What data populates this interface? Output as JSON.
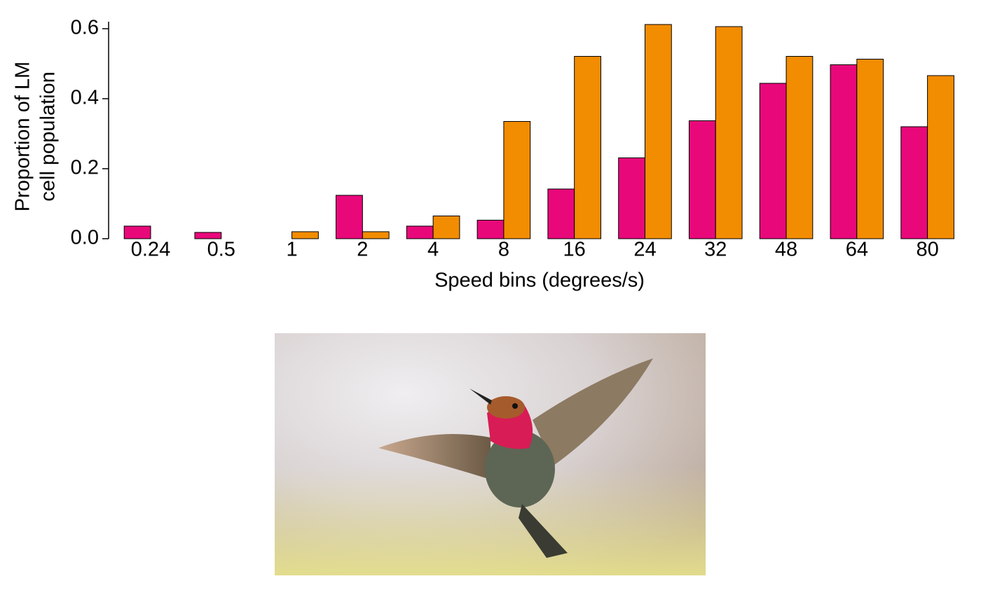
{
  "chart_data": {
    "type": "bar",
    "xlabel": "Speed bins (degrees/s)",
    "ylabel": [
      "Proportion of LM",
      "cell population"
    ],
    "categories": [
      "0.24",
      "0.5",
      "1",
      "2",
      "4",
      "8",
      "16",
      "24",
      "32",
      "48",
      "64",
      "80"
    ],
    "series": [
      {
        "color": "#e8087a",
        "values": [
          0.036,
          0.018,
          0,
          0.124,
          0.036,
          0.053,
          0.142,
          0.231,
          0.337,
          0.444,
          0.497,
          0.32
        ]
      },
      {
        "color": "#f28c00",
        "values": [
          0,
          0,
          0.02,
          0.02,
          0.065,
          0.335,
          0.521,
          0.612,
          0.606,
          0.521,
          0.513,
          0.466
        ]
      }
    ],
    "ylim": [
      0,
      0.62
    ],
    "yticks": [
      {
        "value": 0,
        "label": "0.0"
      },
      0.2,
      0.4,
      0.6
    ]
  }
}
